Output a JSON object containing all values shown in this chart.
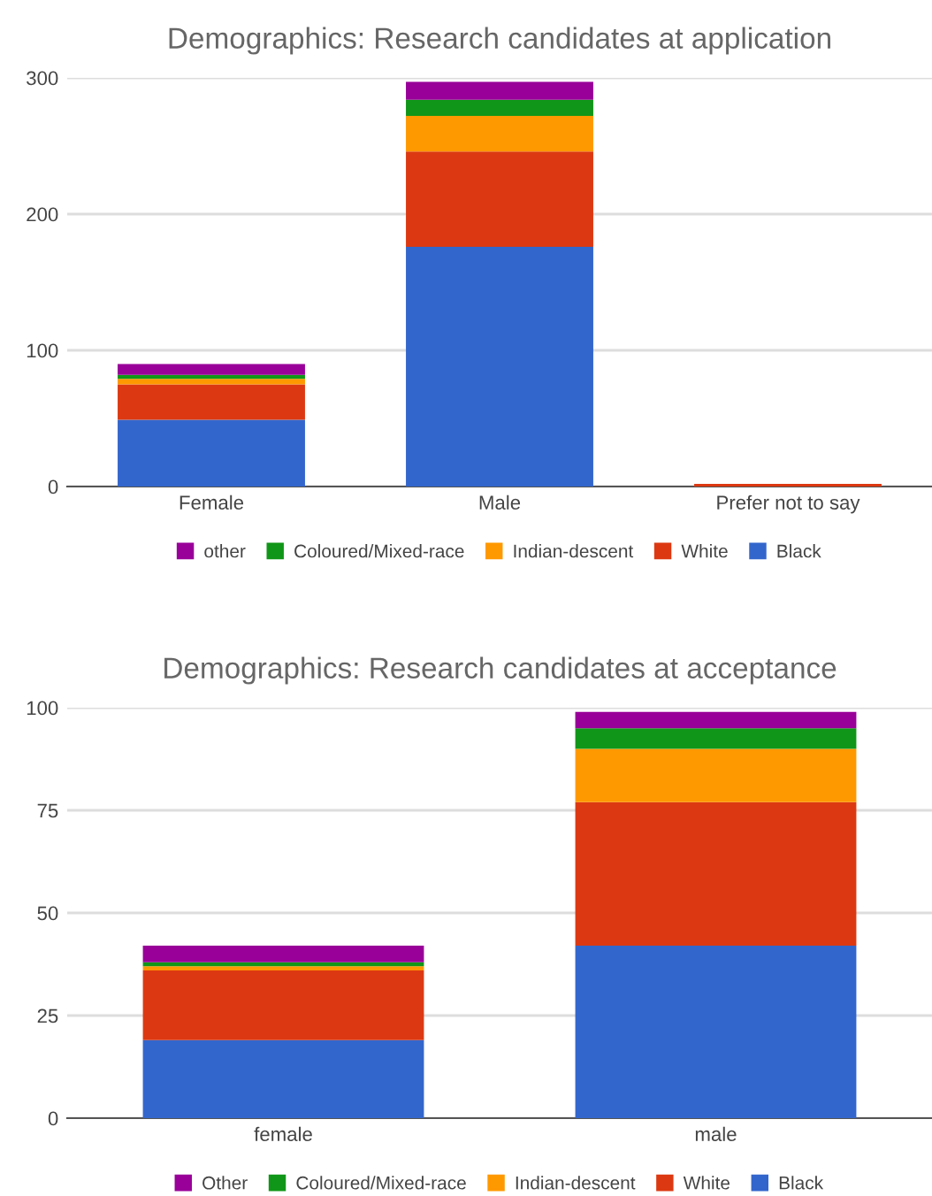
{
  "chart_data": [
    {
      "type": "bar",
      "title": "Demographics: Research candidates at application",
      "categories": [
        "Female",
        "Male",
        "Prefer not to say"
      ],
      "stacked": true,
      "ylim": [
        0,
        300
      ],
      "yticks": [
        0,
        100,
        200,
        300
      ],
      "grid": "y",
      "legend": "bottom",
      "series": [
        {
          "name": "Black",
          "color": "#3366cc",
          "values": [
            49,
            176,
            0
          ]
        },
        {
          "name": "White",
          "color": "#dc3912",
          "values": [
            26,
            70,
            2
          ]
        },
        {
          "name": "Indian-descent",
          "color": "#ff9900",
          "values": [
            4,
            26,
            0
          ]
        },
        {
          "name": "Coloured/Mixed-race",
          "color": "#109618",
          "values": [
            3,
            12,
            0
          ]
        },
        {
          "name": "other",
          "color": "#990099",
          "values": [
            8,
            13,
            0
          ]
        }
      ]
    },
    {
      "type": "bar",
      "title": "Demographics: Research candidates at acceptance",
      "categories": [
        "female",
        "male"
      ],
      "stacked": true,
      "ylim": [
        0,
        100
      ],
      "yticks": [
        0,
        25,
        50,
        75,
        100
      ],
      "grid": "y",
      "legend": "bottom",
      "series": [
        {
          "name": "Black",
          "color": "#3366cc",
          "values": [
            19,
            42
          ]
        },
        {
          "name": "White",
          "color": "#dc3912",
          "values": [
            17,
            35
          ]
        },
        {
          "name": "Indian-descent",
          "color": "#ff9900",
          "values": [
            1,
            13
          ]
        },
        {
          "name": "Coloured/Mixed-race",
          "color": "#109618",
          "values": [
            1,
            5
          ]
        },
        {
          "name": "Other",
          "color": "#990099",
          "values": [
            4,
            4
          ]
        }
      ]
    }
  ]
}
